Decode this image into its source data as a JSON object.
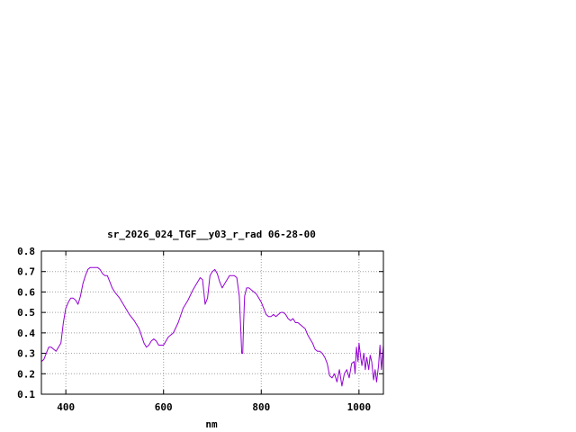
{
  "chart_data": {
    "type": "line",
    "title": "sr_2026_024_TGF__y03_r_rad 06-28-00",
    "xlabel": "nm",
    "ylabel": "",
    "xlim": [
      350,
      1050
    ],
    "ylim": [
      0.1,
      0.8
    ],
    "xticks": [
      400,
      600,
      800,
      1000
    ],
    "yticks": [
      0.1,
      0.2,
      0.3,
      0.4,
      0.5,
      0.6,
      0.7,
      0.8
    ],
    "xtick_labels": [
      "400",
      "600",
      "800",
      "1000"
    ],
    "ytick_labels": [
      "0.1",
      "0.2",
      "0.3",
      "0.4",
      "0.5",
      "0.6",
      "0.7",
      "0.8"
    ],
    "grid": true,
    "legend": "none",
    "series": [
      {
        "color": "#9400d3",
        "x": [
          350,
          355,
          360,
          365,
          370,
          375,
          380,
          385,
          390,
          395,
          400,
          405,
          410,
          415,
          420,
          425,
          430,
          435,
          440,
          445,
          450,
          455,
          460,
          465,
          470,
          475,
          480,
          485,
          490,
          495,
          500,
          510,
          520,
          530,
          540,
          550,
          560,
          565,
          570,
          575,
          580,
          585,
          590,
          600,
          610,
          620,
          630,
          640,
          650,
          660,
          665,
          670,
          675,
          680,
          685,
          690,
          695,
          700,
          705,
          710,
          715,
          720,
          725,
          730,
          735,
          740,
          745,
          750,
          755,
          758,
          760,
          762,
          764,
          766,
          770,
          775,
          780,
          785,
          790,
          795,
          800,
          805,
          810,
          815,
          820,
          825,
          830,
          835,
          840,
          845,
          850,
          855,
          860,
          865,
          870,
          875,
          880,
          885,
          890,
          895,
          900,
          905,
          910,
          915,
          920,
          925,
          930,
          935,
          940,
          945,
          950,
          955,
          960,
          965,
          970,
          975,
          980,
          985,
          990,
          992,
          995,
          998,
          1000,
          1003,
          1006,
          1010,
          1013,
          1016,
          1020,
          1023,
          1026,
          1030,
          1033,
          1036,
          1040,
          1043,
          1046,
          1050
        ],
        "y": [
          0.26,
          0.27,
          0.3,
          0.33,
          0.33,
          0.32,
          0.31,
          0.33,
          0.35,
          0.45,
          0.52,
          0.55,
          0.57,
          0.57,
          0.56,
          0.54,
          0.58,
          0.64,
          0.68,
          0.71,
          0.72,
          0.72,
          0.72,
          0.72,
          0.71,
          0.69,
          0.68,
          0.68,
          0.65,
          0.62,
          0.6,
          0.57,
          0.53,
          0.49,
          0.46,
          0.42,
          0.35,
          0.33,
          0.34,
          0.36,
          0.37,
          0.36,
          0.34,
          0.34,
          0.38,
          0.4,
          0.45,
          0.52,
          0.56,
          0.61,
          0.63,
          0.65,
          0.67,
          0.66,
          0.54,
          0.57,
          0.68,
          0.7,
          0.71,
          0.69,
          0.65,
          0.62,
          0.64,
          0.66,
          0.68,
          0.68,
          0.68,
          0.67,
          0.58,
          0.42,
          0.3,
          0.3,
          0.45,
          0.58,
          0.62,
          0.62,
          0.61,
          0.6,
          0.59,
          0.57,
          0.55,
          0.52,
          0.49,
          0.48,
          0.48,
          0.49,
          0.48,
          0.49,
          0.5,
          0.5,
          0.49,
          0.47,
          0.46,
          0.47,
          0.45,
          0.45,
          0.44,
          0.43,
          0.42,
          0.39,
          0.37,
          0.35,
          0.32,
          0.31,
          0.31,
          0.3,
          0.28,
          0.25,
          0.19,
          0.18,
          0.2,
          0.16,
          0.22,
          0.14,
          0.2,
          0.22,
          0.18,
          0.25,
          0.26,
          0.2,
          0.33,
          0.26,
          0.35,
          0.29,
          0.24,
          0.3,
          0.22,
          0.28,
          0.22,
          0.29,
          0.26,
          0.17,
          0.22,
          0.16,
          0.24,
          0.34,
          0.22,
          0.34
        ]
      }
    ]
  }
}
